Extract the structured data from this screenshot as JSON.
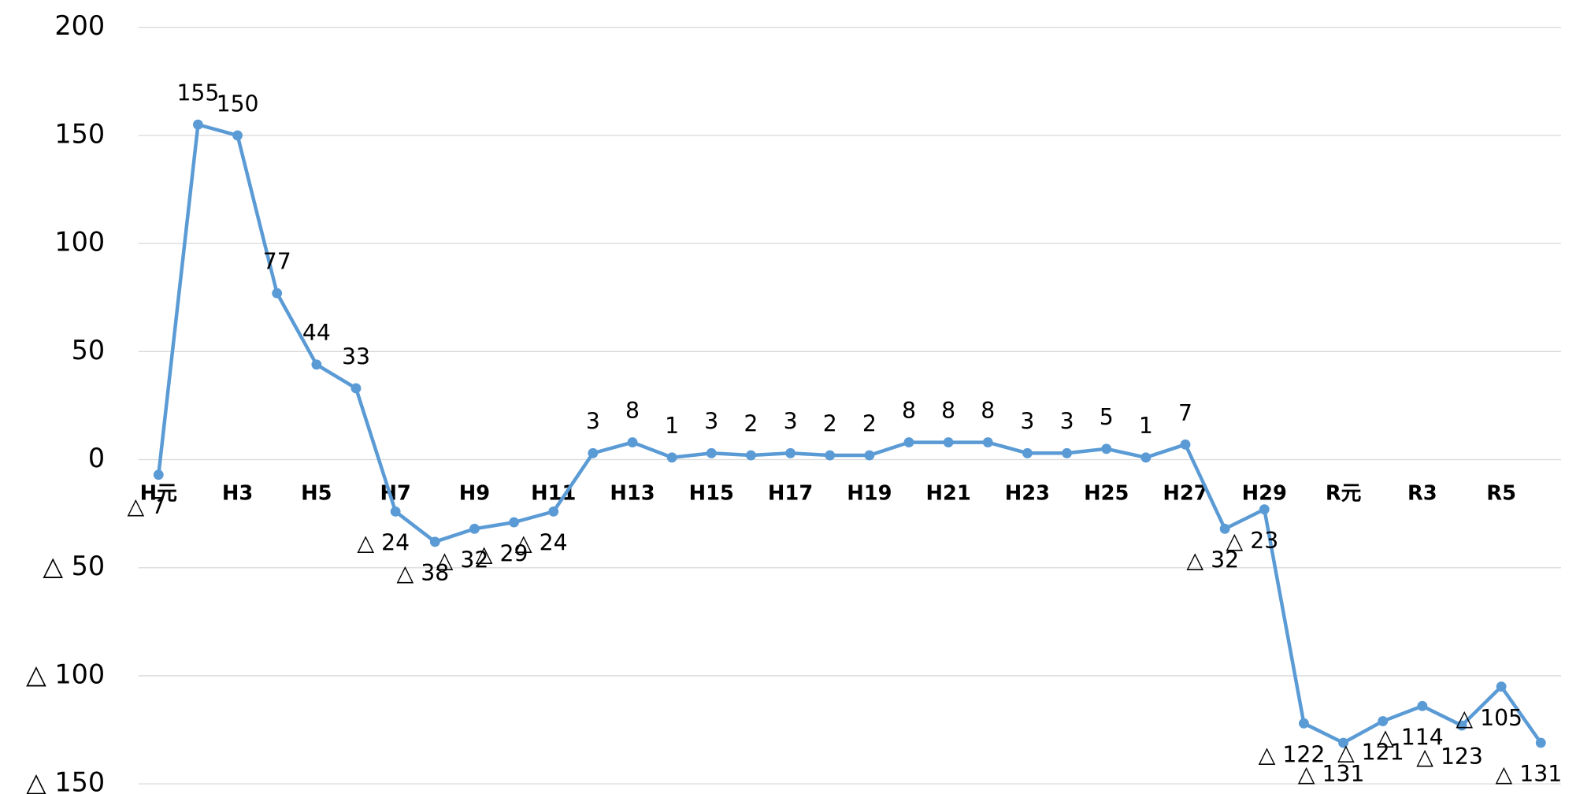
{
  "chart_data": {
    "type": "line",
    "categories": [
      "H元",
      null,
      "H3",
      null,
      "H5",
      null,
      "H7",
      null,
      "H9",
      null,
      "H11",
      null,
      "H13",
      null,
      "H15",
      null,
      "H17",
      null,
      "H19",
      null,
      "H21",
      null,
      "H23",
      null,
      "H25",
      null,
      "H27",
      null,
      "H29",
      null,
      "R元",
      null,
      "R3",
      null,
      "R5",
      null
    ],
    "series": [
      {
        "name": null,
        "color": "#5b9bd5",
        "values": [
          -7,
          155,
          150,
          77,
          44,
          33,
          -24,
          -38,
          -32,
          -29,
          -24,
          3,
          8,
          1,
          3,
          2,
          3,
          2,
          2,
          8,
          8,
          8,
          3,
          3,
          5,
          1,
          7,
          -32,
          -23,
          -122,
          -131,
          -121,
          -114,
          -123,
          -105,
          -131
        ],
        "value_labels": [
          "△ 7",
          "155",
          "150",
          "77",
          "44",
          "33",
          "△ 24",
          "△ 38",
          "△ 32",
          "△ 29",
          "△ 24",
          "3",
          "8",
          "1",
          "3",
          "2",
          "3",
          "2",
          "2",
          "8",
          "8",
          "8",
          "3",
          "3",
          "5",
          "1",
          "7",
          "△ 32",
          "△ 23",
          "△ 122",
          "△ 131",
          "△ 121",
          "△ 114",
          "△ 123",
          "△ 105",
          "△ 131"
        ]
      }
    ],
    "ylim": [
      -150,
      200
    ],
    "yticks": [
      {
        "value": -150,
        "label": "△ 150"
      },
      {
        "value": -100,
        "label": "△ 100"
      },
      {
        "value": -50,
        "label": "△ 50"
      },
      0,
      50,
      100,
      150,
      200
    ],
    "grid": true
  }
}
